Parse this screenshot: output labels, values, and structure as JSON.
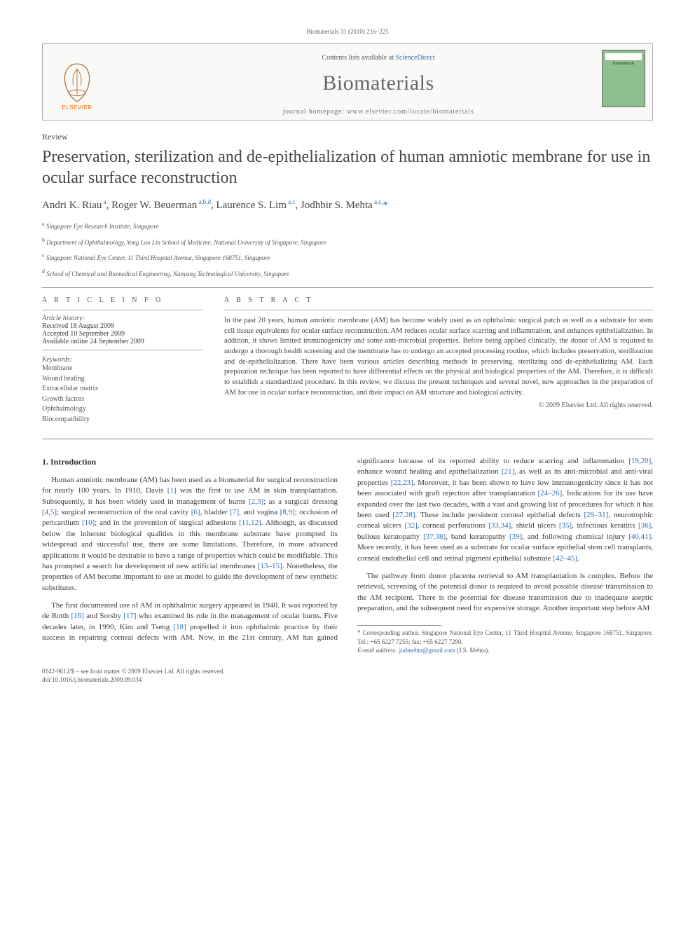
{
  "runhead": "Biomaterials 31 (2010) 216–225",
  "masthead": {
    "contents_prefix": "Contents lists available at ",
    "contents_link": "ScienceDirect",
    "journal": "Biomaterials",
    "homepage_prefix": "journal homepage: ",
    "homepage": "www.elsevier.com/locate/biomaterials",
    "publisher": "ELSEVIER",
    "cover_label": "Biomaterials",
    "colors": {
      "link": "#2a6fb5",
      "publisher": "#ff6600",
      "cover_bg": "#8fbf8f",
      "border": "#aaaaaa",
      "text_muted": "#666666"
    }
  },
  "article_type": "Review",
  "title": "Preservation, sterilization and de-epithelialization of human amniotic membrane for use in ocular surface reconstruction",
  "authors_html": "Andri K. Riau<sup> a</sup>, Roger W. Beuerman<sup> a,b,d</sup>, Laurence S. Lim<sup> a,c</sup>, Jodhbir S. Mehta<sup> a,c,</sup><span class='star'>*</span>",
  "affiliations": [
    "a Singapore Eye Research Institute, Singapore",
    "b Department of Ophthalmology, Yong Loo Lin School of Medicine, National University of Singapore, Singapore",
    "c Singapore National Eye Center, 11 Third Hospital Avenue, Singapore 168751, Singapore",
    "d School of Chemical and Biomedical Engineering, Nanyang Technological University, Singapore"
  ],
  "info": {
    "heading": "A R T I C L E   I N F O",
    "history_label": "Article history:",
    "history": [
      "Received 18 August 2009",
      "Accepted 10 September 2009",
      "Available online 24 September 2009"
    ],
    "keywords_label": "Keywords:",
    "keywords": [
      "Membrane",
      "Wound healing",
      "Extracellular matrix",
      "Growth factors",
      "Ophthalmology",
      "Biocompatibility"
    ]
  },
  "abstract": {
    "heading": "A B S T R A C T",
    "text": "In the past 20 years, human amniotic membrane (AM) has become widely used as an ophthalmic surgical patch as well as a substrate for stem cell tissue equivalents for ocular surface reconstruction. AM reduces ocular surface scarring and inflammation, and enhances epithelialization. In addition, it shows limited immunogenicity and some anti-microbial properties. Before being applied clinically, the donor of AM is required to undergo a thorough health screening and the membrane has to undergo an accepted processing routine, which includes preservation, sterilization and de-epithelialization. There have been various articles describing methods in preserving, sterilizing and de-epithelializing AM. Each preparation technique has been reported to have differential effects on the physical and biological properties of the AM. Therefore, it is difficult to establish a standardized procedure. In this review, we discuss the present techniques and several novel, new approaches in the preparation of AM for use in ocular surface reconstruction, and their impact on AM structure and biological activity.",
    "copyright": "© 2009 Elsevier Ltd. All rights reserved."
  },
  "sections": {
    "s1_heading": "1.  Introduction",
    "p1": "Human amniotic membrane (AM) has been used as a biomaterial for surgical reconstruction for nearly 100 years. In 1910, Davis [1] was the first to use AM in skin transplantation. Subsequently, it has been widely used in management of burns [2,3]; as a surgical dressing [4,5]; surgical reconstruction of the oral cavity [6], bladder [7], and vagina [8,9]; occlusion of pericardium [10]; and in the prevention of surgical adhesions [11,12]. Although, as discussed below the inherent biological qualities in this membrane substrate have prompted its widespread and successful use, there are some limitations. Therefore, in more advanced applications it would be desirable to have a range of properties which could be modifiable. This has prompted a search for development of new artificial membranes [13–15]. Nonetheless, the properties of AM become important to use as model to guide the development of new synthetic substitutes.",
    "p2": "The first documented use of AM in ophthalmic surgery appeared in 1940. It was reported by de Rotth [16] and Sorsby [17] who examined its role in the management of ocular burns. Five decades later, in 1990, Kim and Tseng [18] propelled it into ophthalmic practice by their success in repairing corneal defects with AM. Now, in the 21st century, AM has gained significance because of its reported ability to reduce scarring and inflammation [19,20], enhance wound healing and epithelialization [21], as well as its anti-microbial and anti-viral properties [22,23]. Moreover, it has been shown to have low immunogenicity since it has not been associated with graft rejection after transplantation [24–26]. Indications for its use have expanded over the last two decades, with a vast and growing list of procedures for which it has been used [27,28]. These include persistent corneal epithelial defects [29–31], neurotrophic corneal ulcers [32], corneal perforations [33,34], shield ulcers [35], infectious keratitis [36], bullous keratopathy [37,38], band keratopathy [39], and following chemical injury [40,41]. More recently, it has been used as a substrate for ocular surface epithelial stem cell transplants, corneal endothelial cell and retinal pigment epithelial substrate [42–45].",
    "p3": "The pathway from donor placenta retrieval to AM transplantation is complex. Before the retrieval, screening of the potential donor is required to avoid possible disease transmission to the AM recipient. There is the potential for disease transmission due to inadequate aseptic preparation, and the subsequent need for expensive storage. Another important step before AM"
  },
  "footnote": {
    "corr": "* Corresponding author. Singapore National Eye Center, 11 Third Hospital Avenue, Singapore 168751, Singapore. Tel.: +65 6227 7255; fax: +65 6227 7290.",
    "email_label": "E-mail address: ",
    "email": "jodmehta@gmail.com",
    "email_suffix": " (J.S. Mehta)."
  },
  "footer": {
    "line1": "0142-9612/$ – see front matter © 2009 Elsevier Ltd. All rights reserved.",
    "line2": "doi:10.1016/j.biomaterials.2009.09.034"
  },
  "ref_color": "#2a6fb5"
}
